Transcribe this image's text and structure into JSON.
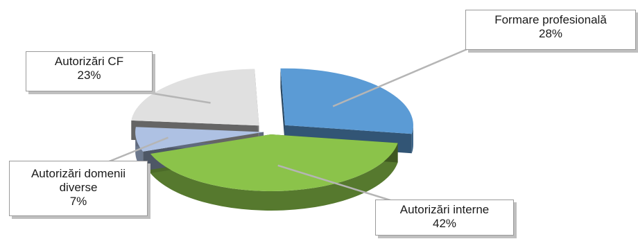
{
  "chart_data": {
    "type": "pie",
    "title": "",
    "slices": [
      {
        "label": "Formare profesională",
        "value": 28,
        "display": "28%",
        "color": "#5b9bd5"
      },
      {
        "label": "Autorizări interne",
        "value": 42,
        "display": "42%",
        "color": "#8bc34a"
      },
      {
        "label": "Autorizări domenii diverse",
        "value": 7,
        "display": "7%",
        "color": "#aec1e3"
      },
      {
        "label": "Autorizări CF",
        "value": 23,
        "display": "23%",
        "color": "#e0e0e0"
      }
    ],
    "legend": "none",
    "exploded": true,
    "three_d": true
  }
}
